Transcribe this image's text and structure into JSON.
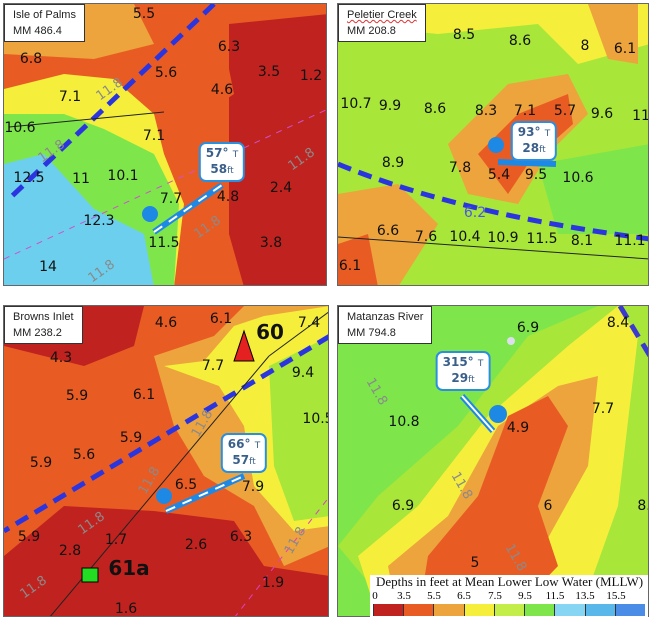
{
  "contour_label": "11.8",
  "colors": {
    "channel": "#2a35e0",
    "bearing_line": "#1e88e5",
    "callout_border": "#2b8fe0"
  },
  "panels": [
    {
      "name": "Isle of Palms",
      "mm": "MM 486.4",
      "callout": {
        "bearing": "57°",
        "unit_b": "T",
        "depth": "58",
        "unit_d": "ft"
      },
      "soundings": [
        "5.5",
        "6.8",
        "6.3",
        "5.6",
        "3.5",
        "1.2",
        "4.6",
        "7.1",
        "10.6",
        "7.1",
        "12.5",
        "11",
        "10.1",
        "7.7",
        "4.8",
        "2.4",
        "12.3",
        "11.5",
        "3.8",
        "14"
      ]
    },
    {
      "name": "Peletier Creek",
      "mm": "MM 208.8",
      "callout": {
        "bearing": "93°",
        "unit_b": "T",
        "depth": "28",
        "unit_d": "ft"
      },
      "soundings": [
        "8.5",
        "8.6",
        "8",
        "6.1",
        "10.7",
        "9.9",
        "8.6",
        "8.3",
        "7.1",
        "5.7",
        "9.6",
        "11",
        "8.9",
        "7.8",
        "5.4",
        "9.5",
        "10.6",
        "6.6",
        "7.6",
        "10.4",
        "10.9",
        "11.5",
        "8.1",
        "11.1",
        "6.1"
      ],
      "channel_label": "6.2"
    },
    {
      "name": "Browns Inlet",
      "mm": "MM 238.2",
      "callout": {
        "bearing": "66°",
        "unit_b": "T",
        "depth": "57",
        "unit_d": "ft"
      },
      "soundings": [
        "4.6",
        "6.1",
        "7.4",
        "4.3",
        "7.7",
        "9.4",
        "5.9",
        "6.1",
        "10.5",
        "5.9",
        "5.6",
        "5.9",
        "6.5",
        "7.9",
        "5.9",
        "2.8",
        "1.7",
        "2.6",
        "6.3",
        "1.9",
        "1.6"
      ],
      "markers": [
        "60",
        "61a"
      ]
    },
    {
      "name": "Matanzas River",
      "mm": "MM 794.8",
      "callout": {
        "bearing": "315°",
        "unit_b": "T",
        "depth": "29",
        "unit_d": "ft"
      },
      "soundings": [
        "6.9",
        "8.4",
        "10.8",
        "4.9",
        "7.7",
        "6.9",
        "6",
        "8.",
        "5"
      ]
    }
  ],
  "legend": {
    "title": "Depths in feet at Mean Lower Low Water (MLLW)",
    "ticks": [
      "0",
      "3.5",
      "5.5",
      "6.5",
      "7.5",
      "9.5",
      "11.5",
      "13.5",
      "15.5"
    ],
    "colors": [
      "#c0231f",
      "#e85c24",
      "#eda43c",
      "#f5ef3c",
      "#c3ee4a",
      "#7ee64b",
      "#86d5f2",
      "#5ab7ea",
      "#4a8ce6"
    ]
  }
}
